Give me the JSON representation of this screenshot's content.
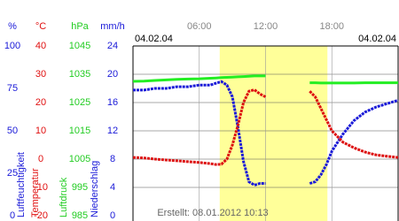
{
  "chart_data": {
    "type": "line",
    "date_left": "04.02.04",
    "date_right": "04.02.04",
    "footer": "Erstellt: 08.01.2012 10:13",
    "xlim": [
      0,
      24
    ],
    "xticks": [
      {
        "value": 6,
        "label": "06:00"
      },
      {
        "value": 12,
        "label": "12:00"
      },
      {
        "value": 18,
        "label": "18:00"
      }
    ],
    "daylight": [
      7.85,
      17.6
    ],
    "grid": true,
    "axes": [
      {
        "unit": "%",
        "title": "Luftfeuchtigkeit",
        "color": "#1a1ad8",
        "ylim": [
          0,
          100
        ],
        "ticks": [
          100,
          75,
          50,
          25,
          0
        ]
      },
      {
        "unit": "°C",
        "title": "Temperatur",
        "color": "#e01010",
        "ylim": [
          -20,
          40
        ],
        "ticks": [
          40,
          30,
          20,
          10,
          0,
          -10,
          -20
        ]
      },
      {
        "unit": "hPa",
        "title": "Luftdruck",
        "color": "#22cc22",
        "ylim": [
          985,
          1045
        ],
        "ticks": [
          1045,
          1035,
          1025,
          1015,
          1005,
          995,
          985
        ]
      },
      {
        "unit": "mm/h",
        "title": "Niederschlag",
        "color": "#1a1ad8",
        "ylim": [
          0,
          24
        ],
        "ticks": [
          24,
          20,
          16,
          12,
          8,
          4,
          0
        ]
      }
    ],
    "x": [
      0,
      1,
      2,
      3,
      4,
      5,
      6,
      7,
      7.5,
      8,
      8.5,
      9,
      9.5,
      10,
      10.5,
      11,
      11.5,
      12,
      13,
      14,
      15,
      16,
      16.5,
      17,
      17.5,
      18,
      19,
      20,
      21,
      22,
      23,
      24
    ],
    "series": [
      {
        "axis": 2,
        "color": "#22ee22",
        "values": [
          1032.5,
          1032.6,
          1032.8,
          1033,
          1033.2,
          1033.3,
          1033.4,
          1033.6,
          1033.7,
          1033.8,
          1033.9,
          1034,
          1034.1,
          1034.2,
          1034.3,
          1034.4,
          1034.4,
          1034.4,
          null,
          null,
          null,
          1032,
          1032,
          1031.9,
          1031.9,
          1031.9,
          1031.9,
          1031.9,
          1032,
          1032,
          1032,
          1032
        ]
      },
      {
        "axis": 0,
        "color": "#1a1ad8",
        "values": [
          74,
          74,
          75,
          75,
          76,
          76,
          77,
          77,
          78,
          79,
          77,
          70,
          52,
          32,
          20,
          18,
          19,
          19,
          null,
          null,
          null,
          19,
          20,
          24,
          30,
          38,
          48,
          56,
          61,
          64,
          66,
          68
        ]
      },
      {
        "axis": 1,
        "color": "#dd1111",
        "values": [
          0.6,
          0.4,
          0,
          -0.3,
          -0.6,
          -0.9,
          -1.2,
          -1.6,
          -1.9,
          -1.8,
          0,
          5,
          12,
          20,
          24,
          24.5,
          23,
          22,
          null,
          null,
          null,
          24,
          22,
          18,
          14,
          10,
          6,
          4,
          2.5,
          1.5,
          1,
          0.6
        ]
      }
    ]
  }
}
